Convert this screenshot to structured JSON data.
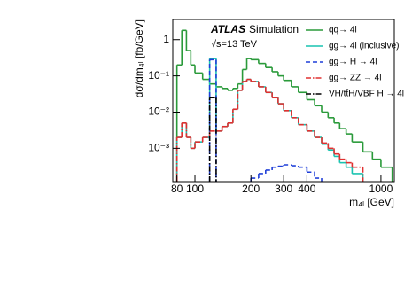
{
  "chart_data": {
    "type": "histogram",
    "title": "ATLAS",
    "subtitle": "Simulation",
    "annotations": [
      "√s=13 TeV"
    ],
    "xlabel": "m₄ₗ [GeV]",
    "ylabel": "dσ/dm₄ₗ [fb/GeV]",
    "log_x": true,
    "log_y": true,
    "legend": "upper right",
    "bins": [
      80,
      85,
      90,
      95,
      100,
      110,
      120,
      130,
      140,
      150,
      160,
      170,
      180,
      190,
      200,
      220,
      240,
      260,
      280,
      300,
      330,
      360,
      400,
      440,
      480,
      520,
      560,
      600,
      650,
      700,
      800,
      900,
      1000,
      1150
    ],
    "xlim": [
      76,
      1180
    ],
    "ylim": [
      0.00012,
      3.6
    ],
    "xticks": [
      80,
      100,
      200,
      300,
      400,
      1000
    ],
    "yticks": [
      {
        "value": 1,
        "label": "1"
      },
      {
        "value": 0.1,
        "label": "10⁻¹"
      },
      {
        "value": 0.01,
        "label": "10⁻²"
      },
      {
        "value": 0.001,
        "label": "10⁻³"
      }
    ],
    "series": [
      {
        "name": "qq̄→ 4l",
        "color": "#2a9a3a",
        "dash": "solid",
        "values": [
          0.2,
          1.8,
          0.5,
          0.2,
          0.12,
          0.08,
          0.06,
          0.05,
          0.045,
          0.04,
          0.045,
          0.06,
          0.15,
          0.3,
          0.28,
          0.22,
          0.17,
          0.13,
          0.1,
          0.075,
          0.05,
          0.035,
          0.022,
          0.015,
          0.01,
          0.007,
          0.005,
          0.0035,
          0.0025,
          0.0015,
          0.0008,
          0.0005,
          0.0003
        ]
      },
      {
        "name": "gg→ 4l (inclusive)",
        "color": "#19c3b0",
        "dash": "solid",
        "values": [
          0.002,
          0.005,
          0.002,
          0.001,
          0.0015,
          0.002,
          0.3,
          0.003,
          0.004,
          0.005,
          0.012,
          0.04,
          0.07,
          0.08,
          0.07,
          0.05,
          0.035,
          0.025,
          0.017,
          0.011,
          0.007,
          0.0045,
          0.003,
          0.002,
          0.0013,
          0.0009,
          0.0006,
          0.0004,
          0.0003,
          0.0002,
          null,
          null,
          null
        ]
      },
      {
        "name": "gg→ H → 4l",
        "color": "#1f3fd8",
        "dash": "dashed",
        "values": [
          null,
          null,
          null,
          null,
          null,
          null,
          0.28,
          null,
          null,
          null,
          null,
          null,
          null,
          null,
          0.00015,
          0.0002,
          0.00025,
          0.0003,
          0.00032,
          0.00035,
          0.00033,
          0.0003,
          0.00022,
          0.00015,
          null,
          null,
          null,
          null,
          null,
          null,
          null,
          null,
          null
        ]
      },
      {
        "name": "gg→ ZZ → 4l",
        "color": "#e03030",
        "dash": "dashdot",
        "values": [
          0.002,
          0.005,
          0.002,
          0.001,
          0.0015,
          0.002,
          0.003,
          0.003,
          0.004,
          0.005,
          0.012,
          0.04,
          0.07,
          0.08,
          0.07,
          0.05,
          0.035,
          0.025,
          0.017,
          0.011,
          0.007,
          0.0045,
          0.003,
          0.002,
          0.0014,
          0.001,
          0.0007,
          0.0005,
          0.0004,
          0.0003,
          null,
          null,
          null
        ]
      },
      {
        "name": "VH/tt̄H/VBF H → 4l",
        "color": "#000000",
        "dash": "dashdot",
        "values": [
          null,
          null,
          null,
          null,
          null,
          null,
          0.025,
          null,
          null,
          null,
          null,
          null,
          null,
          null,
          null,
          null,
          null,
          null,
          null,
          null,
          null,
          null,
          null,
          null,
          null,
          null,
          null,
          null,
          null,
          null,
          null,
          null,
          null
        ]
      }
    ]
  }
}
